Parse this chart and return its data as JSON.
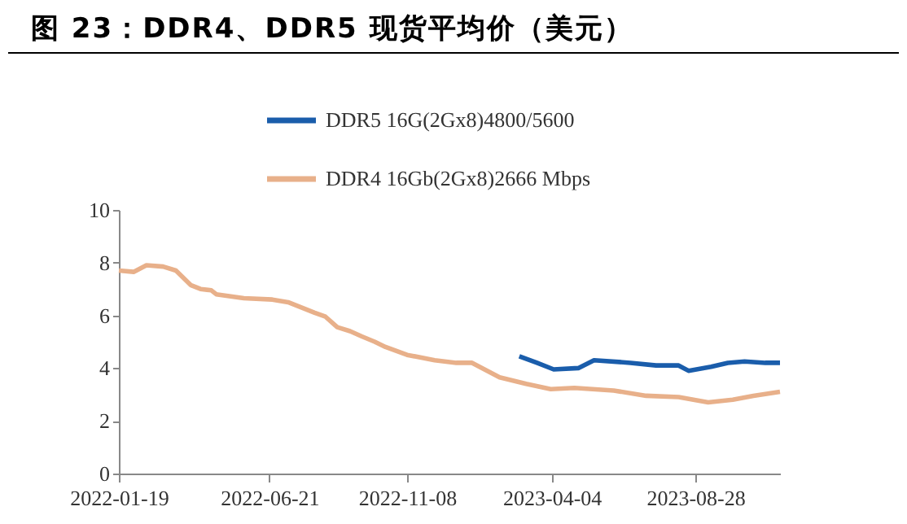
{
  "chart_data": {
    "type": "line",
    "title": "图 23：DDR4、DDR5 现货平均价（美元）",
    "ylim": [
      0,
      10
    ],
    "yticks": [
      0,
      2,
      4,
      6,
      8,
      10
    ],
    "xlim": [
      "2022-01-19",
      "2023-11-22"
    ],
    "xticks": [
      "2022-01-19",
      "2022-06-21",
      "2022-11-08",
      "2023-04-04",
      "2023-08-28"
    ],
    "grid": false,
    "legend": "top",
    "line_style": "solid",
    "marker": "none",
    "series": [
      {
        "name": "DDR5 16G(2Gx8)4800/5600",
        "color": "#1a5dab",
        "x": [
          "2023-03-02",
          "2023-03-20",
          "2023-04-06",
          "2023-05-01",
          "2023-05-17",
          "2023-06-23",
          "2023-07-19",
          "2023-08-11",
          "2023-08-21",
          "2023-09-13",
          "2023-09-30",
          "2023-10-17",
          "2023-11-07",
          "2023-11-22"
        ],
        "values": [
          4.45,
          4.2,
          3.95,
          4.0,
          4.3,
          4.2,
          4.1,
          4.1,
          3.9,
          4.05,
          4.2,
          4.25,
          4.2,
          4.2
        ]
      },
      {
        "name": "DDR4 16Gb(2Gx8)2666 Mbps",
        "color": "#e8b08a",
        "x": [
          "2022-01-19",
          "2022-02-03",
          "2022-02-16",
          "2022-03-05",
          "2022-03-18",
          "2022-04-02",
          "2022-04-12",
          "2022-04-23",
          "2022-04-28",
          "2022-05-26",
          "2022-06-24",
          "2022-07-10",
          "2022-08-06",
          "2022-08-17",
          "2022-08-29",
          "2022-09-11",
          "2022-09-23",
          "2022-10-06",
          "2022-10-17",
          "2022-11-08",
          "2022-12-06",
          "2022-12-28",
          "2023-01-13",
          "2023-02-10",
          "2023-03-09",
          "2023-04-03",
          "2023-04-27",
          "2023-06-06",
          "2023-07-09",
          "2023-08-11",
          "2023-09-10",
          "2023-10-05",
          "2023-10-26",
          "2023-11-22"
        ],
        "values": [
          7.7,
          7.65,
          7.9,
          7.85,
          7.7,
          7.15,
          7.0,
          6.95,
          6.8,
          6.65,
          6.6,
          6.5,
          6.1,
          5.95,
          5.55,
          5.4,
          5.2,
          5.0,
          4.8,
          4.5,
          4.3,
          4.2,
          4.2,
          3.65,
          3.4,
          3.2,
          3.25,
          3.15,
          2.95,
          2.9,
          2.7,
          2.8,
          2.95,
          3.1
        ]
      }
    ]
  }
}
